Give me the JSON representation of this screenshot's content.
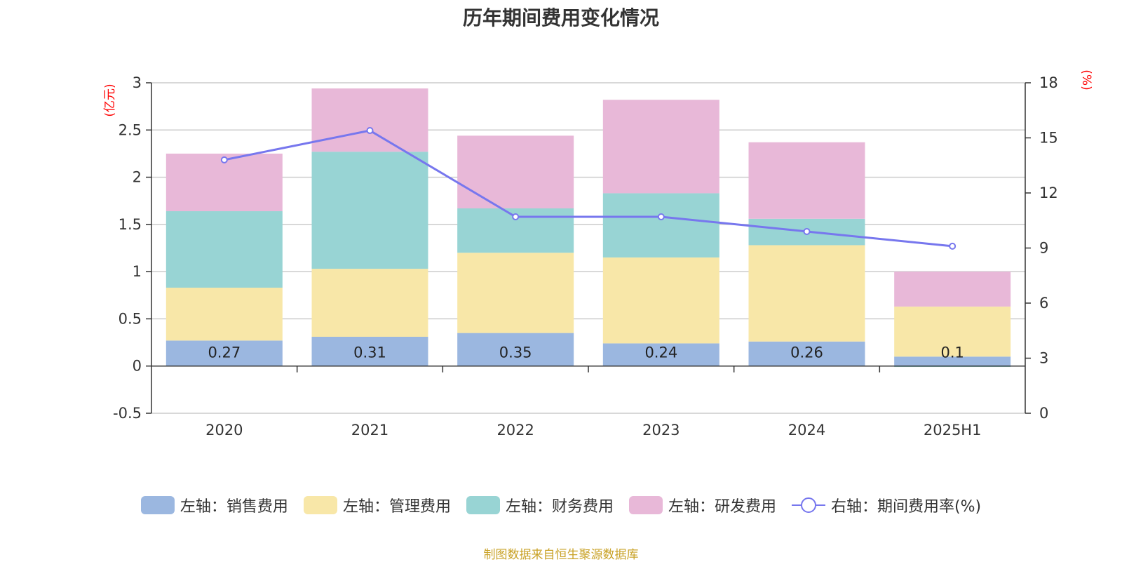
{
  "title": "历年期间费用变化情况",
  "source": "制图数据来自恒生聚源数据库",
  "colors": {
    "sales": "#9bb7e0",
    "admin": "#f8e7a8",
    "finance": "#98d4d4",
    "rnd": "#e8b8d8",
    "ratio_line": "#7777ee",
    "unit_label": "#ff0000"
  },
  "chart_data": {
    "type": "bar",
    "stacked": true,
    "categories": [
      "2020",
      "2021",
      "2022",
      "2023",
      "2024",
      "2025H1"
    ],
    "left_axis": {
      "unit": "(亿元)",
      "ticks": [
        "3",
        "2.5",
        "2",
        "1.5",
        "1",
        "0.5",
        "0",
        "-0.5"
      ],
      "ylim": [
        -0.5,
        3
      ]
    },
    "right_axis": {
      "unit": "(%)",
      "ticks": [
        "18",
        "15",
        "12",
        "9",
        "6",
        "3",
        "0"
      ],
      "ylim": [
        0,
        18
      ]
    },
    "series": [
      {
        "name": "左轴：销售费用",
        "axis": "left",
        "type": "bar",
        "values": [
          0.27,
          0.31,
          0.35,
          0.24,
          0.26,
          0.1
        ],
        "labels": [
          "0.27",
          "0.31",
          "0.35",
          "0.24",
          "0.26",
          "0.1"
        ]
      },
      {
        "name": "左轴：管理费用",
        "axis": "left",
        "type": "bar",
        "values": [
          0.56,
          0.72,
          0.85,
          0.91,
          1.02,
          0.53
        ]
      },
      {
        "name": "左轴：财务费用",
        "axis": "left",
        "type": "bar",
        "values": [
          0.81,
          1.24,
          0.47,
          0.68,
          0.28,
          -0.01
        ]
      },
      {
        "name": "左轴：研发费用",
        "axis": "left",
        "type": "bar",
        "values": [
          0.61,
          0.67,
          0.77,
          0.99,
          0.81,
          0.37
        ]
      },
      {
        "name": "右轴：期间费用率(%)",
        "axis": "right",
        "type": "line",
        "values": [
          13.8,
          15.4,
          10.7,
          10.7,
          9.9,
          9.1
        ]
      }
    ],
    "grid": true,
    "legend_position": "bottom"
  }
}
